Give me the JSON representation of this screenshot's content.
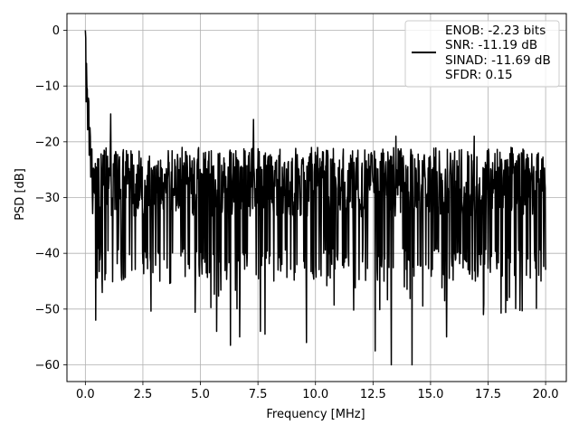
{
  "chart_data": {
    "type": "line",
    "title": "",
    "xlabel": "Frequency [MHz]",
    "ylabel": "PSD [dB]",
    "xlim": [
      -0.8,
      20.9
    ],
    "ylim": [
      -63,
      3
    ],
    "xticks": [
      0.0,
      2.5,
      5.0,
      7.5,
      10.0,
      12.5,
      15.0,
      17.5,
      20.0
    ],
    "xtick_labels": [
      "0.0",
      "2.5",
      "5.0",
      "7.5",
      "10.0",
      "12.5",
      "15.0",
      "17.5",
      "20.0"
    ],
    "yticks": [
      0,
      -10,
      -20,
      -30,
      -40,
      -50,
      -60
    ],
    "ytick_labels": [
      "0",
      "−10",
      "−20",
      "−30",
      "−40",
      "−50",
      "−60"
    ],
    "grid": true,
    "legend_position": "top-right",
    "line_color": "#000000",
    "legend": {
      "lines": [
        "ENOB: -2.23 bits",
        "SNR: -11.19 dB",
        "SINAD: -11.69 dB",
        "SFDR: 0.15"
      ]
    },
    "series": [
      {
        "x_range": [
          0.0,
          20.0
        ],
        "n_points": 1200,
        "baseline_db": -29,
        "typical_range_db": [
          -39,
          -21
        ],
        "peak_max_db": -15,
        "dip_min_db": -60,
        "dc_value_db": 0,
        "dc_decay_end_mhz": 0.3,
        "min_points": [
          {
            "x": 0.45,
            "y": -52
          },
          {
            "x": 5.7,
            "y": -54
          },
          {
            "x": 6.3,
            "y": -56.5
          },
          {
            "x": 6.7,
            "y": -55
          },
          {
            "x": 7.6,
            "y": -54
          },
          {
            "x": 7.8,
            "y": -54.5
          },
          {
            "x": 9.6,
            "y": -56
          },
          {
            "x": 12.6,
            "y": -57.5
          },
          {
            "x": 13.3,
            "y": -60
          },
          {
            "x": 14.2,
            "y": -60
          },
          {
            "x": 15.7,
            "y": -55
          },
          {
            "x": 17.3,
            "y": -51
          }
        ],
        "max_points": [
          {
            "x": 1.1,
            "y": -15
          },
          {
            "x": 7.3,
            "y": -16
          },
          {
            "x": 13.5,
            "y": -19
          },
          {
            "x": 16.9,
            "y": -19
          }
        ]
      }
    ]
  }
}
